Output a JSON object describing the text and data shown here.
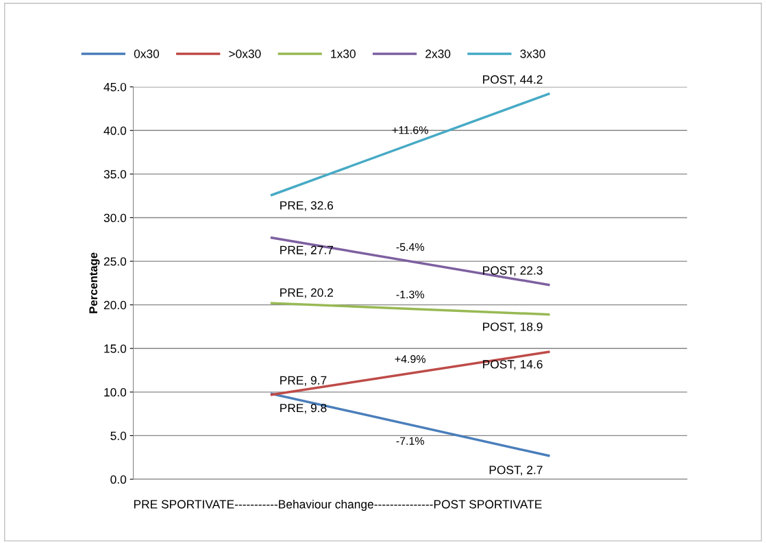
{
  "chart_data": {
    "type": "line",
    "xlabel": "PRE SPORTIVATE-----------Behaviour change---------------POST SPORTIVATE",
    "ylabel": "Percentage",
    "categories": [
      null,
      null
    ],
    "series": [
      {
        "name": "0x30",
        "color": "#4a7ebb",
        "values": [
          9.8,
          2.7
        ],
        "value_labels": [
          "PRE, 9.8",
          "POST, 2.7"
        ]
      },
      {
        "name": ">0x30",
        "color": "#be4b48",
        "values": [
          9.7,
          14.6
        ],
        "value_labels": [
          "PRE, 9.7",
          "POST, 14.6"
        ]
      },
      {
        "name": "1x30",
        "color": "#98b954",
        "values": [
          20.2,
          18.9
        ],
        "value_labels": [
          "PRE, 20.2",
          "POST, 18.9"
        ]
      },
      {
        "name": "2x30",
        "color": "#7d60a0",
        "values": [
          27.7,
          22.3
        ],
        "value_labels": [
          "PRE, 27.7",
          "POST, 22.3"
        ]
      },
      {
        "name": "3x30",
        "color": "#46aac5",
        "values": [
          32.6,
          44.2
        ],
        "value_labels": [
          "PRE, 32.6",
          "POST, 44.2"
        ]
      }
    ],
    "annotations": [
      "-7.1%",
      "+4.9%",
      "-1.3%",
      "-5.4%",
      "+11.6%"
    ],
    "ylim": [
      0,
      45
    ],
    "yticks": [
      {
        "value": 0,
        "label": "0.0"
      },
      {
        "value": 5,
        "label": "5.0"
      },
      {
        "value": 10,
        "label": "10.0"
      },
      {
        "value": 15,
        "label": "15.0"
      },
      {
        "value": 20,
        "label": "20.0"
      },
      {
        "value": 25,
        "label": "25.0"
      },
      {
        "value": 30,
        "label": "30.0"
      },
      {
        "value": 35,
        "label": "35.0"
      },
      {
        "value": 40,
        "label": "40.0"
      },
      {
        "value": 45,
        "label": "45.0"
      }
    ],
    "grid": "y",
    "legend": "top",
    "marker": "none",
    "line_style": "solid"
  }
}
